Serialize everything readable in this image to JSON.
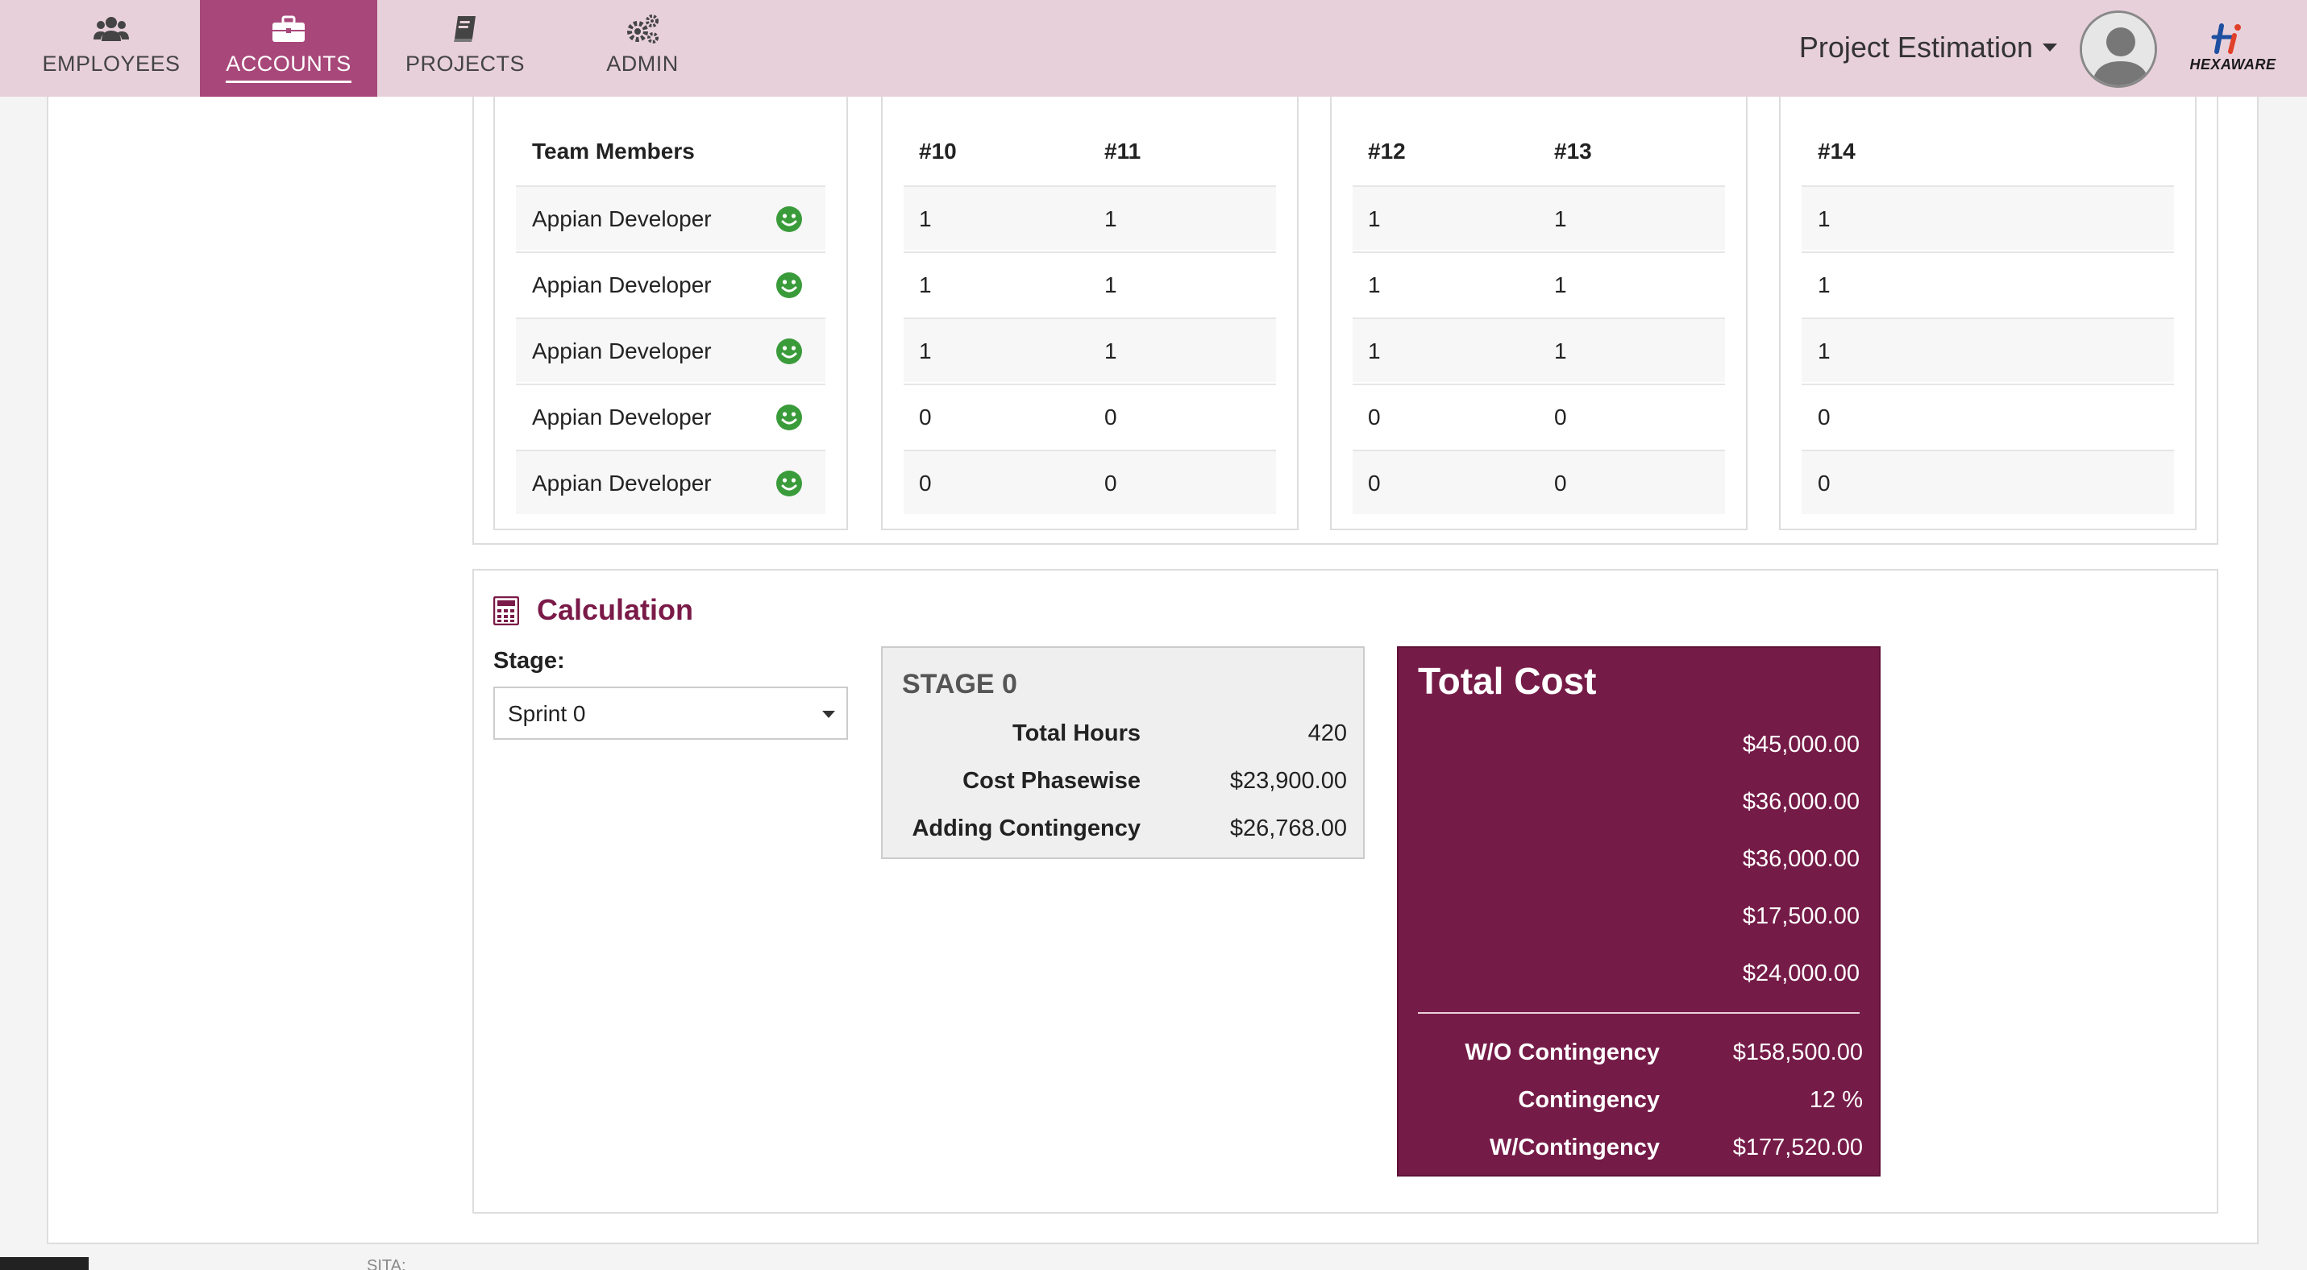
{
  "nav": {
    "items": [
      {
        "label": "EMPLOYEES",
        "icon": "users-icon"
      },
      {
        "label": "ACCOUNTS",
        "icon": "briefcase-icon"
      },
      {
        "label": "PROJECTS",
        "icon": "book-icon"
      },
      {
        "label": "ADMIN",
        "icon": "gears-icon"
      }
    ],
    "active": "ACCOUNTS",
    "project_title": "Project Estimation",
    "logo_text": "HEXAWARE"
  },
  "team": {
    "header": "Team Members",
    "members": [
      "Appian Developer",
      "Appian Developer",
      "Appian Developer",
      "Appian Developer",
      "Appian Developer"
    ],
    "status_icon": "smile-icon",
    "status_color": "#3a9b3a"
  },
  "sprints": {
    "panel1": {
      "headers": [
        "#10",
        "#11"
      ],
      "rows": [
        [
          "1",
          "1"
        ],
        [
          "1",
          "1"
        ],
        [
          "1",
          "1"
        ],
        [
          "0",
          "0"
        ],
        [
          "0",
          "0"
        ]
      ]
    },
    "panel2": {
      "headers": [
        "#12",
        "#13"
      ],
      "rows": [
        [
          "1",
          "1"
        ],
        [
          "1",
          "1"
        ],
        [
          "1",
          "1"
        ],
        [
          "0",
          "0"
        ],
        [
          "0",
          "0"
        ]
      ]
    },
    "panel3": {
      "headers": [
        "#14"
      ],
      "rows": [
        [
          "1"
        ],
        [
          "1"
        ],
        [
          "1"
        ],
        [
          "0"
        ],
        [
          "0"
        ]
      ]
    }
  },
  "calculation": {
    "title": "Calculation",
    "stage_label": "Stage:",
    "stage_value": "Sprint 0",
    "stage_box": {
      "title": "STAGE 0",
      "rows": [
        {
          "label": "Total Hours",
          "value": "420"
        },
        {
          "label": "Cost Phasewise",
          "value": "$23,900.00"
        },
        {
          "label": "Adding Contingency",
          "value": "$26,768.00"
        }
      ]
    },
    "total_cost": {
      "title": "Total Cost",
      "values": [
        "$45,000.00",
        "$36,000.00",
        "$36,000.00",
        "$17,500.00",
        "$24,000.00"
      ],
      "summary": [
        {
          "label": "W/O Contingency",
          "value": "$158,500.00"
        },
        {
          "label": "Contingency",
          "value": "12 %"
        },
        {
          "label": "W/Contingency",
          "value": "$177,520.00"
        }
      ]
    }
  },
  "footer": {
    "partial_text": "SITA:"
  },
  "colors": {
    "nav_bg": "#e8d0da",
    "nav_active": "#a8487a",
    "accent": "#751b47"
  }
}
